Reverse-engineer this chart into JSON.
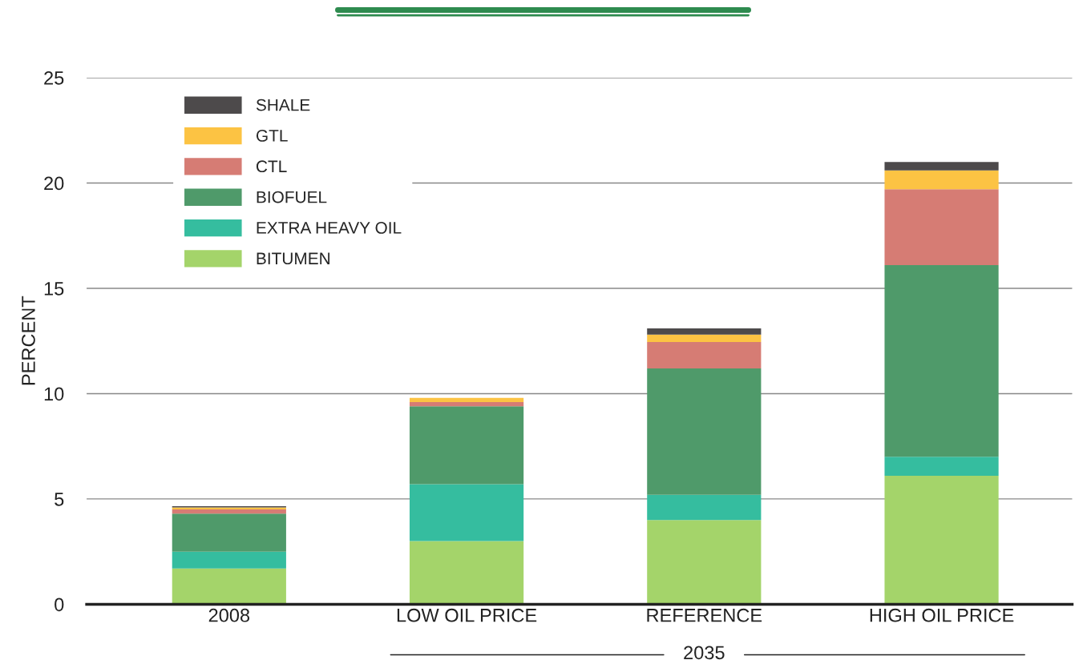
{
  "chart_data": {
    "type": "bar",
    "stacked": true,
    "ylabel": "PERCENT",
    "categories": [
      "2008",
      "LOW OIL PRICE",
      "REFERENCE",
      "HIGH OIL PRICE"
    ],
    "series": [
      {
        "name": "BITUMEN",
        "color": "#a4d46a",
        "values": [
          1.7,
          3.0,
          4.0,
          6.1
        ]
      },
      {
        "name": "EXTRA HEAVY OIL",
        "color": "#35bd9f",
        "values": [
          0.8,
          2.7,
          1.2,
          0.9
        ]
      },
      {
        "name": "BIOFUEL",
        "color": "#4f9a6a",
        "values": [
          1.8,
          3.7,
          6.0,
          9.1
        ]
      },
      {
        "name": "CTL",
        "color": "#d67c74",
        "values": [
          0.2,
          0.2,
          1.25,
          3.6
        ]
      },
      {
        "name": "GTL",
        "color": "#fcc343",
        "values": [
          0.1,
          0.2,
          0.35,
          0.9
        ]
      },
      {
        "name": "SHALE",
        "color": "#4d4a4b",
        "values": [
          0.05,
          null,
          0.3,
          0.4
        ]
      }
    ],
    "ylim": [
      0,
      25
    ],
    "yticks": [
      0,
      5,
      10,
      15,
      20,
      25
    ],
    "grid": "y",
    "legend": "top left",
    "annotations": [
      "2035"
    ]
  }
}
